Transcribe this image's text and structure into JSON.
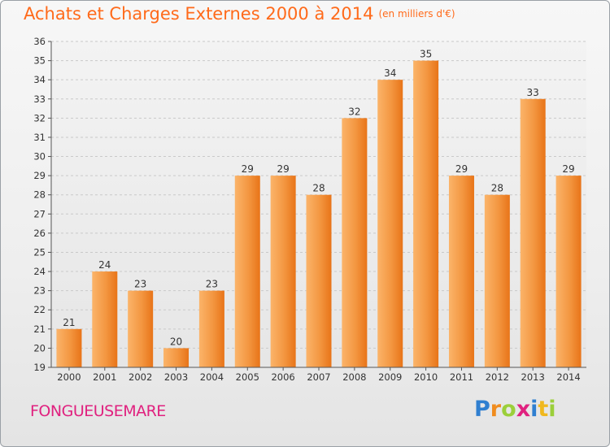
{
  "header": {
    "title": "Achats et Charges Externes 2000 à 2014",
    "subtitle": "(en milliers d'€)"
  },
  "footer": {
    "commune": "FONGUEUSEMARE"
  },
  "logo": {
    "text": "Proxiti",
    "letters": [
      {
        "ch": "P",
        "color": "#2f7fd0"
      },
      {
        "ch": "r",
        "color": "#f08c1e"
      },
      {
        "ch": "o",
        "color": "#9bcf3a"
      },
      {
        "ch": "x",
        "color": "#e0217f"
      },
      {
        "ch": "i",
        "color": "#2f7fd0"
      },
      {
        "ch": "t",
        "color": "#f0b81e"
      },
      {
        "ch": "i",
        "color": "#9bcf3a"
      }
    ]
  },
  "colors": {
    "title": "#ff6a1a",
    "commune": "#e0217f",
    "bar_light": "#f9b060",
    "bar_dark": "#e87418"
  },
  "chart_data": {
    "type": "bar",
    "categories": [
      "2000",
      "2001",
      "2002",
      "2003",
      "2004",
      "2005",
      "2006",
      "2007",
      "2008",
      "2009",
      "2010",
      "2011",
      "2012",
      "2013",
      "2014"
    ],
    "values": [
      21,
      24,
      23,
      20,
      23,
      29,
      29,
      28,
      32,
      34,
      35,
      29,
      28,
      33,
      29
    ],
    "title": "Achats et Charges Externes 2000 à 2014",
    "ylim": [
      19,
      36
    ],
    "yticks": [
      19,
      20,
      21,
      22,
      23,
      24,
      25,
      26,
      27,
      28,
      29,
      30,
      31,
      32,
      33,
      34,
      35,
      36
    ],
    "grid": true,
    "data_labels": true
  }
}
